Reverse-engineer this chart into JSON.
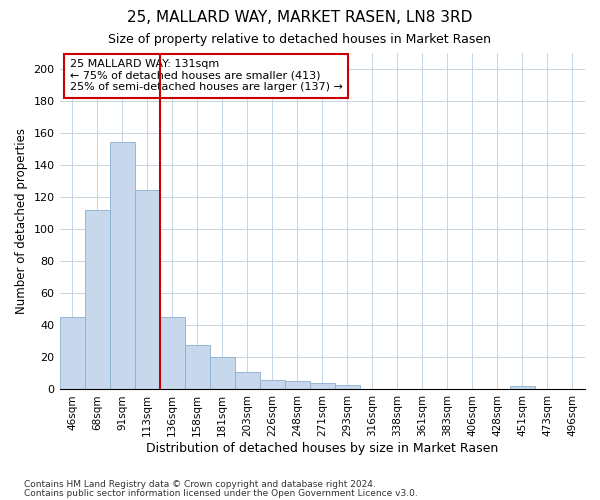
{
  "title": "25, MALLARD WAY, MARKET RASEN, LN8 3RD",
  "subtitle": "Size of property relative to detached houses in Market Rasen",
  "xlabel": "Distribution of detached houses by size in Market Rasen",
  "ylabel": "Number of detached properties",
  "categories": [
    "46sqm",
    "68sqm",
    "91sqm",
    "113sqm",
    "136sqm",
    "158sqm",
    "181sqm",
    "203sqm",
    "226sqm",
    "248sqm",
    "271sqm",
    "293sqm",
    "316sqm",
    "338sqm",
    "361sqm",
    "383sqm",
    "406sqm",
    "428sqm",
    "451sqm",
    "473sqm",
    "496sqm"
  ],
  "values": [
    45,
    112,
    154,
    124,
    45,
    28,
    20,
    11,
    6,
    5,
    4,
    3,
    0,
    0,
    0,
    0,
    0,
    0,
    2,
    0,
    0
  ],
  "bar_color": "#c8d8ec",
  "bar_edge_color": "#8ab0d0",
  "grid_color": "#c5d5e5",
  "property_label": "25 MALLARD WAY: 131sqm",
  "annotation_line1": "← 75% of detached houses are smaller (413)",
  "annotation_line2": "25% of semi-detached houses are larger (137) →",
  "vline_color": "#cc0000",
  "annotation_box_color": "#ffffff",
  "annotation_box_edge_color": "#cc0000",
  "footer_line1": "Contains HM Land Registry data © Crown copyright and database right 2024.",
  "footer_line2": "Contains public sector information licensed under the Open Government Licence v3.0.",
  "ylim": [
    0,
    210
  ],
  "background_color": "#ffffff",
  "plot_background": "#ffffff"
}
